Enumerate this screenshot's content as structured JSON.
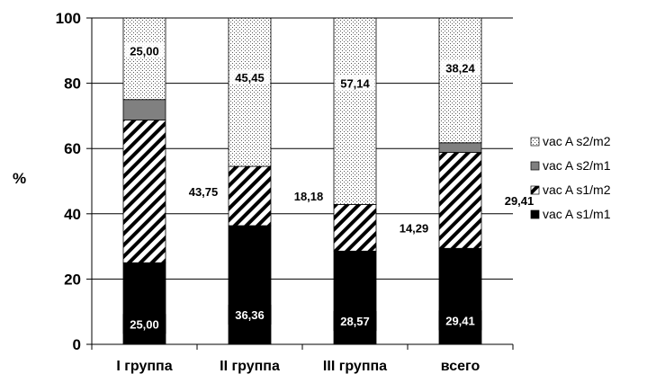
{
  "chart_data": {
    "type": "bar",
    "stacked": true,
    "categories": [
      "I группа",
      "II группа",
      "III группа",
      "всего"
    ],
    "ylabel": "%",
    "ylim": [
      0,
      100
    ],
    "yticks": [
      0,
      20,
      40,
      60,
      80,
      100
    ],
    "grid": true,
    "legend_position": "right",
    "series": [
      {
        "name": "vac A s1/m1",
        "values": [
          25.0,
          36.36,
          28.57,
          29.41
        ],
        "labels": [
          "25,00",
          "36,36",
          "28,57",
          "29,41"
        ],
        "fill": "solid",
        "color": "#000000"
      },
      {
        "name": "vac A s1/m2",
        "values": [
          43.75,
          18.18,
          14.29,
          29.41
        ],
        "labels": [
          "43,75",
          "18,18",
          "14,29",
          "29,41"
        ],
        "fill": "hatch",
        "color": "#000000"
      },
      {
        "name": "vac A s2/m1",
        "values": [
          6.25,
          0,
          0,
          2.94
        ],
        "labels": [
          "",
          "",
          "",
          ""
        ],
        "fill": "solid",
        "color": "#808080"
      },
      {
        "name": "vac A s2/m2",
        "values": [
          25.0,
          45.45,
          57.14,
          38.24
        ],
        "labels": [
          "25,00",
          "45,45",
          "57,14",
          "38,24"
        ],
        "fill": "dots",
        "color": "#000000"
      }
    ],
    "legend_order": [
      "vac A s2/m2",
      "vac A s2/m1",
      "vac A s1/m2",
      "vac A s1/m1"
    ]
  }
}
